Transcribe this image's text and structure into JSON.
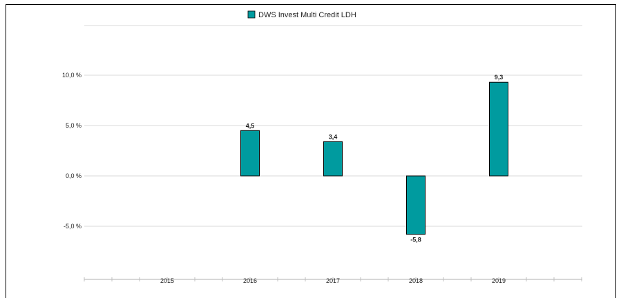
{
  "legend": {
    "label": "DWS Invest Multi Credit  LDH",
    "color": "#009b9f"
  },
  "chart_data": {
    "type": "bar",
    "categories": [
      "2015",
      "2016",
      "2017",
      "2018",
      "2019"
    ],
    "series": [
      {
        "name": "DWS Invest Multi Credit  LDH",
        "values": [
          null,
          4.5,
          3.4,
          -5.8,
          9.3
        ],
        "labels": [
          "",
          "4,5",
          "3,4",
          "-5,8",
          "9,3"
        ],
        "color": "#009b9f"
      }
    ],
    "yticks": [
      10,
      5,
      0,
      -5
    ],
    "ytick_labels": [
      "10,0 %",
      "5,0 %",
      "0,0 %",
      "-5,0 %"
    ],
    "ylim": [
      -10,
      15
    ],
    "grid": true,
    "legend_position": "top-center"
  }
}
